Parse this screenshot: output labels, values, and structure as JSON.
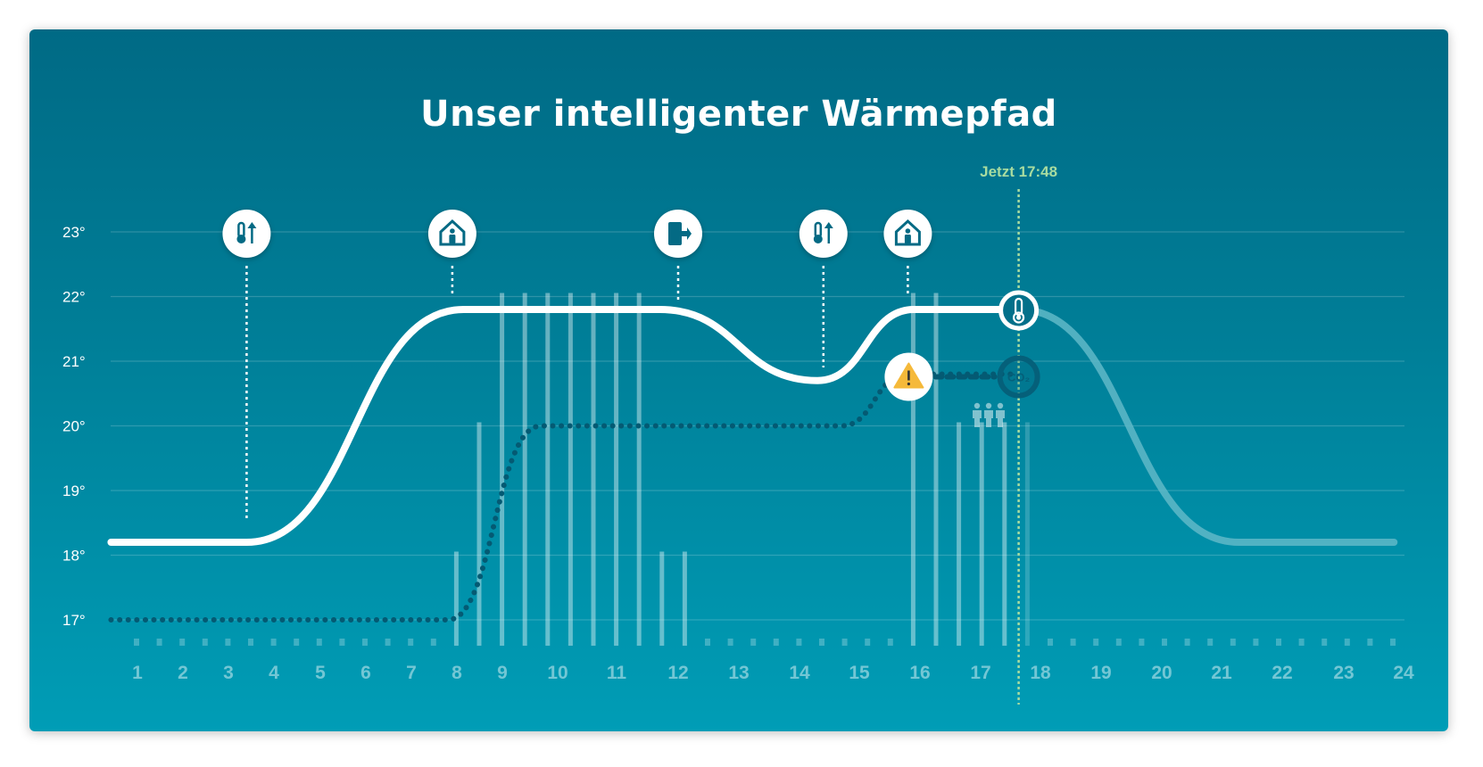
{
  "title": "Unser intelligenter Wärmepfad",
  "colors": {
    "background_top": "#006a85",
    "background_bottom": "#009db6",
    "curve": "#ffffff",
    "forecast": "#5fb8c8",
    "indoor": "#045a73",
    "now": "#a8dca0",
    "warning": "#f5b93a"
  },
  "chart_data": {
    "type": "line",
    "title": "Unser intelligenter Wärmepfad",
    "x_ticks": [
      "1",
      "2",
      "3",
      "4",
      "5",
      "6",
      "7",
      "8",
      "9",
      "10",
      "11",
      "12",
      "13",
      "14",
      "15",
      "16",
      "17",
      "18",
      "19",
      "20",
      "21",
      "22",
      "23",
      "24"
    ],
    "y_ticks": [
      "17°",
      "18°",
      "19°",
      "20°",
      "21°",
      "22°",
      "23°"
    ],
    "ylim": [
      17,
      23
    ],
    "grid": true,
    "now": {
      "label": "Jetzt 17:48",
      "hour": 17.8
    },
    "series": [
      {
        "role": "target-path",
        "style": "solid",
        "points": [
          [
            0.42,
            18.2
          ],
          [
            3.4,
            18.2
          ],
          [
            8.15,
            21.8
          ],
          [
            11.7,
            21.8
          ],
          [
            14.3,
            20.7
          ],
          [
            15.9,
            21.8
          ],
          [
            17.8,
            21.8
          ]
        ]
      },
      {
        "role": "forecast-path",
        "style": "faded",
        "points": [
          [
            17.8,
            21.8
          ],
          [
            21.45,
            18.2
          ],
          [
            24,
            18.2
          ]
        ]
      },
      {
        "role": "room-temperature",
        "style": "dotted",
        "points": [
          [
            0.42,
            17.0
          ],
          [
            7.8,
            17.0
          ],
          [
            9.7,
            20.0
          ],
          [
            14.7,
            20.0
          ],
          [
            15.8,
            20.8
          ],
          [
            17.8,
            20.8
          ]
        ]
      }
    ],
    "activity_bars": [
      {
        "slot": 14,
        "level": 18
      },
      {
        "slot": 15,
        "level": 20
      },
      {
        "slot": 16,
        "level": 22
      },
      {
        "slot": 17,
        "level": 22
      },
      {
        "slot": 18,
        "level": 22
      },
      {
        "slot": 19,
        "level": 22
      },
      {
        "slot": 20,
        "level": 22
      },
      {
        "slot": 21,
        "level": 22
      },
      {
        "slot": 22,
        "level": 22
      },
      {
        "slot": 23,
        "level": 18
      },
      {
        "slot": 24,
        "level": 18
      },
      {
        "slot": 34,
        "level": 22
      },
      {
        "slot": 35,
        "level": 22
      },
      {
        "slot": 36,
        "level": 20
      },
      {
        "slot": 37,
        "level": 20
      },
      {
        "slot": 38,
        "level": 20
      },
      {
        "slot": 39,
        "level": 20,
        "faded": true
      }
    ],
    "events": [
      {
        "hour": 3.4,
        "icon": "thermometer-up-icon"
      },
      {
        "hour": 7.9,
        "icon": "home-person-icon"
      },
      {
        "hour": 12.0,
        "icon": "exit-door-icon"
      },
      {
        "hour": 14.4,
        "icon": "thermometer-up-icon"
      },
      {
        "hour": 15.8,
        "icon": "home-person-icon"
      }
    ],
    "alerts": [
      {
        "icon": "warning-icon",
        "hour": 15.8,
        "temp": 20.8
      },
      {
        "icon": "co2-icon",
        "label": "CO₂",
        "hour": 17.8,
        "temp": 20.8
      },
      {
        "icon": "people-icon",
        "hour": 17.0,
        "temp": 20.2
      },
      {
        "icon": "thermometer-icon",
        "hour": 17.8,
        "temp": 21.8
      }
    ]
  }
}
